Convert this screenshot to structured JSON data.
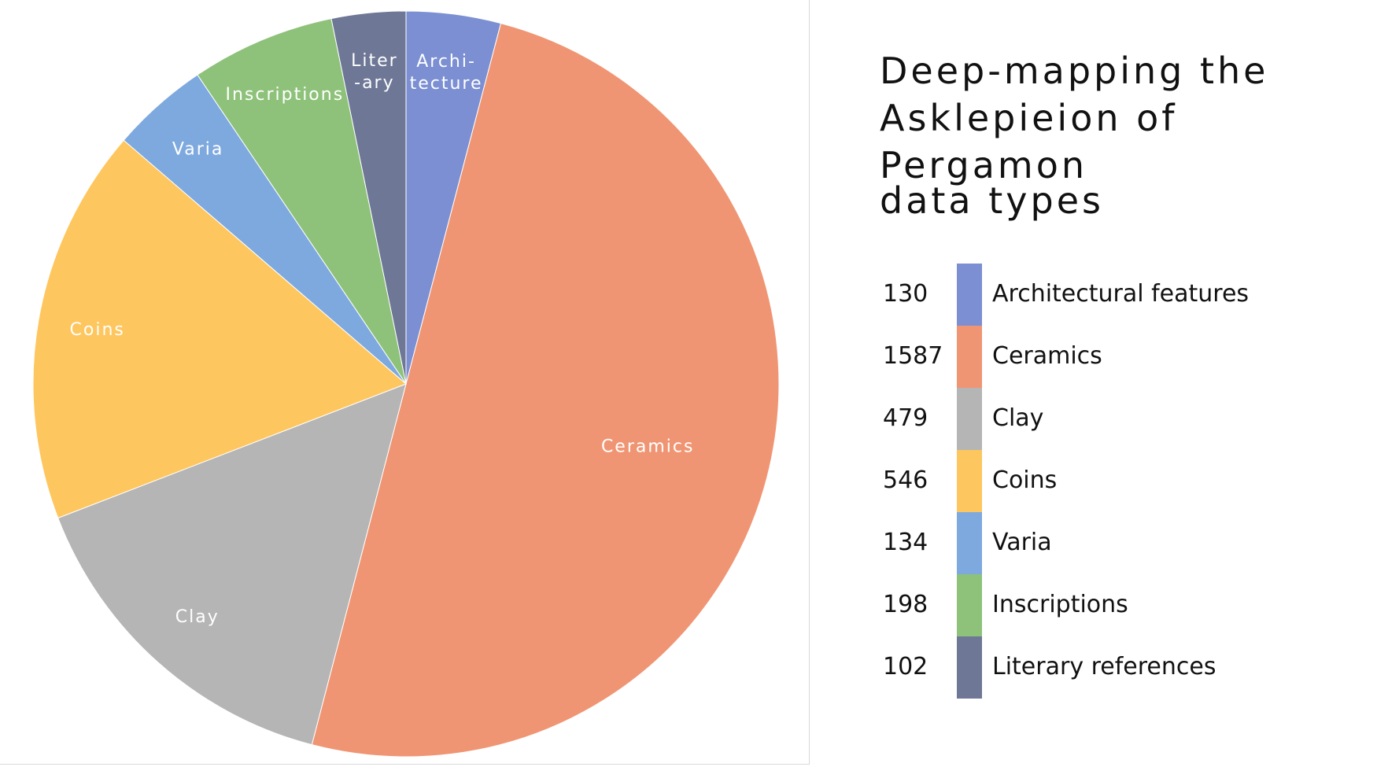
{
  "chart_data": {
    "type": "pie",
    "title": "Deep-mapping the Asklepieion of Pergamon",
    "subtitle": "data types",
    "categories": [
      "Architectural features",
      "Ceramics",
      "Clay",
      "Coins",
      "Varia",
      "Inscriptions",
      "Literary references"
    ],
    "values": [
      130,
      1587,
      479,
      546,
      134,
      198,
      102
    ],
    "colors": [
      "#7b8fd2",
      "#f09573",
      "#b5b5b5",
      "#fec65e",
      "#7ea9df",
      "#8ec27a",
      "#6e7796"
    ],
    "slice_labels": [
      [
        "Archi-",
        "tecture"
      ],
      [
        "Ceramics"
      ],
      [
        "Clay"
      ],
      [
        "Coins"
      ],
      [
        "Varia"
      ],
      [
        "Inscriptions"
      ],
      [
        "Liter",
        "-ary"
      ]
    ]
  }
}
